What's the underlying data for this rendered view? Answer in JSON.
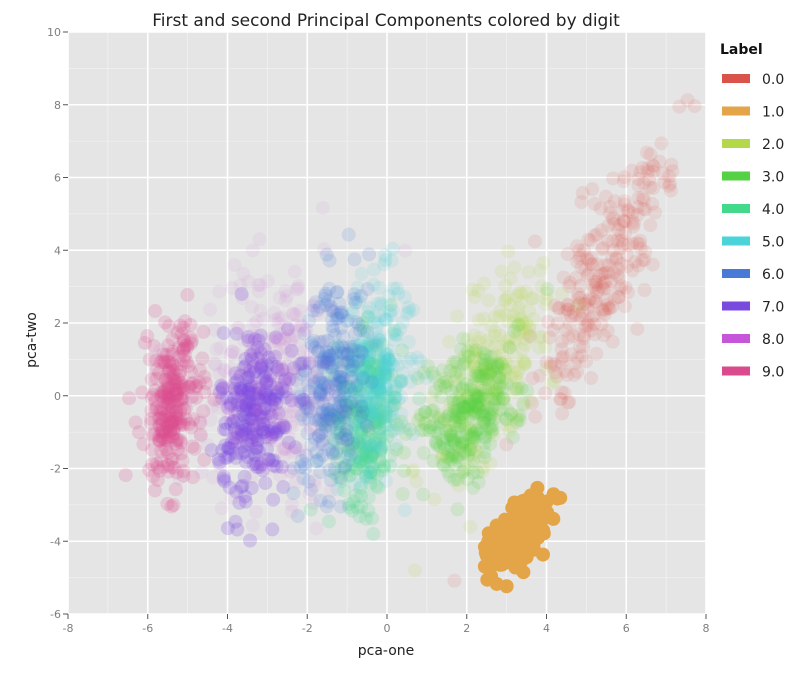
{
  "chart_data": {
    "type": "scatter",
    "title": "First and second Principal Components colored by digit",
    "xlabel": "pca-one",
    "ylabel": "pca-two",
    "xlim": [
      -8,
      8
    ],
    "ylim": [
      -6,
      10
    ],
    "x_ticks": [
      "-8",
      "-6",
      "-4",
      "-2",
      "0",
      "2",
      "4",
      "6",
      "8"
    ],
    "y_ticks": [
      "-6",
      "-4",
      "-2",
      "0",
      "2",
      "4",
      "6",
      "8",
      "10"
    ],
    "grid": true,
    "background": "#e5e5e5",
    "legend": {
      "title": "Label",
      "position": "right",
      "entries": [
        "0.0",
        "1.0",
        "2.0",
        "3.0",
        "4.0",
        "5.0",
        "6.0",
        "7.0",
        "8.0",
        "9.0"
      ]
    },
    "series": [
      {
        "name": "0.0",
        "color": "#d9534a",
        "center": [
          5.4,
          3.3
        ],
        "spread": [
          0.5,
          2.0
        ],
        "tilt": 0.35,
        "alpha": 0.05
      },
      {
        "name": "1.0",
        "color": "#e3a548",
        "center": [
          3.3,
          -3.8
        ],
        "spread": [
          0.3,
          0.5
        ],
        "tilt": 0.4,
        "alpha": 0.5
      },
      {
        "name": "2.0",
        "color": "#b3d94a",
        "center": [
          2.6,
          0.6
        ],
        "spread": [
          0.55,
          1.4
        ],
        "tilt": 0.3,
        "alpha": 0.06
      },
      {
        "name": "3.0",
        "color": "#55d144",
        "center": [
          2.0,
          -0.5
        ],
        "spread": [
          0.6,
          1.0
        ],
        "tilt": 0.3,
        "alpha": 0.07
      },
      {
        "name": "4.0",
        "color": "#42d98a",
        "center": [
          -0.5,
          -0.6
        ],
        "spread": [
          0.4,
          1.2
        ],
        "tilt": 0.05,
        "alpha": 0.08
      },
      {
        "name": "5.0",
        "color": "#4ad3d8",
        "center": [
          -0.3,
          0.6
        ],
        "spread": [
          0.45,
          1.3
        ],
        "tilt": 0.05,
        "alpha": 0.06
      },
      {
        "name": "6.0",
        "color": "#4a7ad8",
        "center": [
          -1.4,
          0.4
        ],
        "spread": [
          0.4,
          1.4
        ],
        "tilt": 0.1,
        "alpha": 0.07
      },
      {
        "name": "7.0",
        "color": "#7a4ae0",
        "center": [
          -3.3,
          -0.5
        ],
        "spread": [
          0.45,
          1.2
        ],
        "tilt": 0.05,
        "alpha": 0.1
      },
      {
        "name": "8.0",
        "color": "#c655d9",
        "center": [
          -2.8,
          0.5
        ],
        "spread": [
          0.9,
          1.6
        ],
        "tilt": 0.0,
        "alpha": 0.03
      },
      {
        "name": "9.0",
        "color": "#d94a8f",
        "center": [
          -5.4,
          -0.3
        ],
        "spread": [
          0.35,
          1.1
        ],
        "tilt": 0.05,
        "alpha": 0.09
      }
    ]
  }
}
